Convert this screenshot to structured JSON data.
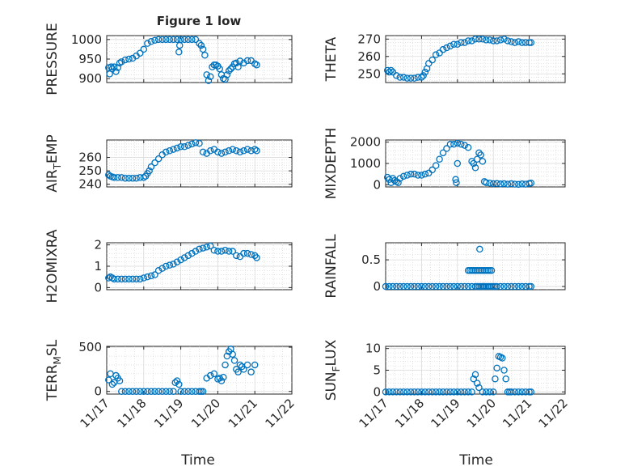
{
  "figure_title": "Figure 1 low",
  "x_axis_label": "Time",
  "x_tick_labels": [
    "11/17",
    "11/18",
    "11/19",
    "11/20",
    "11/21",
    "11/22"
  ],
  "colors": {
    "marker": "#0072bd",
    "axes": "#262626",
    "grid": "#d9d9d9"
  },
  "chart_data": [
    {
      "type": "scatter",
      "ylabel_parts": [
        "PRESSURE"
      ],
      "ylim": [
        890,
        1010
      ],
      "yticks": [
        900,
        950,
        1000
      ],
      "x": [
        0.05,
        0.08,
        0.12,
        0.15,
        0.2,
        0.25,
        0.3,
        0.35,
        0.4,
        0.5,
        0.6,
        0.7,
        0.8,
        0.9,
        1.0,
        1.1,
        1.2,
        1.3,
        1.4,
        1.5,
        1.6,
        1.7,
        1.8,
        1.9,
        2.0,
        2.1,
        2.2,
        2.3,
        2.4,
        1.95,
        1.97,
        2.5,
        2.55,
        2.6,
        2.65,
        2.7,
        2.75,
        2.8,
        2.85,
        2.9,
        2.95,
        3.0,
        3.05,
        3.1,
        3.15,
        3.2,
        3.25,
        3.3,
        3.35,
        3.4,
        3.45,
        3.5,
        3.55,
        3.6,
        3.7,
        3.8,
        3.9,
        4.0,
        4.05
      ],
      "y": [
        928,
        912,
        930,
        925,
        930,
        918,
        928,
        940,
        943,
        948,
        950,
        952,
        958,
        965,
        975,
        990,
        995,
        998,
        1000,
        1000,
        1000,
        1000,
        1000,
        1000,
        1000,
        1000,
        1000,
        1000,
        1000,
        968,
        985,
        990,
        985,
        975,
        960,
        910,
        895,
        905,
        930,
        935,
        935,
        932,
        925,
        910,
        900,
        898,
        910,
        920,
        925,
        930,
        938,
        940,
        930,
        945,
        940,
        946,
        946,
        938,
        935
      ]
    },
    {
      "type": "scatter",
      "ylabel_parts": [
        "THETA"
      ],
      "ylim": [
        245,
        272
      ],
      "yticks": [
        250,
        260,
        270
      ],
      "x": [
        0.05,
        0.1,
        0.15,
        0.2,
        0.3,
        0.4,
        0.5,
        0.6,
        0.7,
        0.8,
        0.9,
        1.0,
        1.05,
        1.1,
        1.15,
        1.2,
        1.3,
        1.4,
        1.5,
        1.6,
        1.7,
        1.8,
        1.9,
        2.0,
        2.1,
        2.2,
        2.3,
        2.4,
        2.5,
        2.6,
        2.7,
        2.8,
        2.9,
        3.0,
        3.1,
        3.2,
        3.3,
        3.4,
        3.5,
        3.6,
        3.7,
        3.8,
        3.9,
        4.0,
        4.05
      ],
      "y": [
        252,
        251,
        252,
        251,
        249,
        248,
        248,
        247.5,
        247.5,
        247.5,
        248,
        248,
        249,
        251,
        253,
        256,
        258,
        261,
        262,
        264,
        265,
        266,
        267,
        267,
        268,
        268,
        269,
        269,
        270,
        270,
        270,
        269.5,
        269.5,
        269,
        269,
        269.5,
        270,
        269,
        268.5,
        268,
        268.5,
        268,
        268,
        268,
        268
      ]
    },
    {
      "type": "scatter",
      "ylabel_parts": [
        "AIR",
        "T",
        "EMP"
      ],
      "ylim": [
        238,
        273
      ],
      "yticks": [
        240,
        250,
        260
      ],
      "x": [
        0.05,
        0.1,
        0.15,
        0.2,
        0.3,
        0.4,
        0.5,
        0.6,
        0.7,
        0.8,
        0.9,
        1.0,
        1.05,
        1.1,
        1.15,
        1.2,
        1.3,
        1.4,
        1.5,
        1.6,
        1.7,
        1.8,
        1.9,
        2.0,
        2.1,
        2.2,
        2.3,
        2.4,
        2.5,
        2.6,
        2.7,
        2.8,
        2.9,
        3.0,
        3.1,
        3.2,
        3.3,
        3.4,
        3.5,
        3.6,
        3.7,
        3.8,
        3.9,
        4.0,
        4.05
      ],
      "y": [
        247,
        246,
        245.5,
        245,
        245,
        245,
        244.5,
        244.5,
        244.5,
        244.5,
        245,
        245,
        246,
        248,
        250,
        253,
        256,
        259,
        262,
        264,
        265,
        266,
        267,
        268,
        268,
        269,
        270,
        271,
        270.5,
        264,
        263,
        265,
        266,
        264,
        263,
        264,
        265,
        266,
        265,
        264,
        265,
        266,
        265,
        266,
        265
      ]
    },
    {
      "type": "scatter",
      "ylabel_parts": [
        "MIXDEPTH"
      ],
      "ylim": [
        -100,
        2100
      ],
      "yticks": [
        0,
        1000,
        2000
      ],
      "x": [
        0.05,
        0.1,
        0.15,
        0.2,
        0.25,
        0.3,
        0.35,
        0.4,
        0.5,
        0.6,
        0.7,
        0.8,
        0.9,
        1.0,
        1.1,
        1.2,
        1.3,
        1.4,
        1.5,
        1.6,
        1.7,
        1.8,
        1.9,
        2.0,
        2.1,
        2.2,
        2.3,
        1.95,
        1.97,
        2.0,
        2.4,
        2.45,
        2.5,
        2.55,
        2.6,
        2.65,
        2.7,
        2.75,
        2.8,
        2.9,
        3.0,
        3.1,
        3.2,
        3.3,
        3.4,
        3.5,
        3.6,
        3.7,
        3.8,
        3.9,
        4.0,
        4.05
      ],
      "y": [
        350,
        250,
        100,
        300,
        200,
        150,
        100,
        300,
        400,
        450,
        500,
        500,
        450,
        450,
        500,
        550,
        700,
        900,
        1200,
        1500,
        1700,
        1900,
        1900,
        1950,
        1900,
        1850,
        1750,
        250,
        100,
        1000,
        1100,
        1000,
        800,
        1200,
        1500,
        1400,
        1100,
        150,
        100,
        80,
        50,
        60,
        40,
        50,
        30,
        50,
        30,
        20,
        40,
        30,
        60,
        80
      ]
    },
    {
      "type": "scatter",
      "ylabel_parts": [
        "H2OMIXRA"
      ],
      "ylim": [
        -0.1,
        2.1
      ],
      "yticks": [
        0,
        1,
        2
      ],
      "x": [
        0.05,
        0.1,
        0.15,
        0.2,
        0.3,
        0.4,
        0.5,
        0.6,
        0.7,
        0.8,
        0.9,
        1.0,
        1.1,
        1.2,
        1.3,
        1.4,
        1.5,
        1.6,
        1.7,
        1.8,
        1.9,
        2.0,
        2.1,
        2.2,
        2.3,
        2.4,
        2.5,
        2.6,
        2.7,
        2.8,
        2.9,
        3.0,
        3.1,
        3.2,
        3.3,
        3.4,
        3.5,
        3.6,
        3.7,
        3.8,
        3.9,
        4.0,
        4.05
      ],
      "y": [
        0.45,
        0.5,
        0.45,
        0.4,
        0.4,
        0.4,
        0.4,
        0.4,
        0.4,
        0.4,
        0.4,
        0.45,
        0.5,
        0.55,
        0.6,
        0.8,
        0.9,
        1.0,
        1.05,
        1.1,
        1.2,
        1.3,
        1.4,
        1.5,
        1.6,
        1.7,
        1.8,
        1.85,
        1.9,
        1.95,
        1.75,
        1.7,
        1.7,
        1.75,
        1.7,
        1.7,
        1.5,
        1.45,
        1.6,
        1.6,
        1.55,
        1.5,
        1.4
      ]
    },
    {
      "type": "scatter",
      "ylabel_parts": [
        "RAINFALL"
      ],
      "ylim": [
        -0.06,
        0.82
      ],
      "yticks": [
        0,
        0.5
      ],
      "x": [
        0.0,
        0.1,
        0.2,
        0.3,
        0.4,
        0.5,
        0.6,
        0.7,
        0.8,
        0.9,
        1.0,
        1.1,
        1.2,
        1.3,
        1.4,
        1.5,
        1.6,
        1.7,
        1.8,
        1.9,
        2.0,
        2.1,
        2.2,
        2.3,
        2.4,
        2.5,
        2.55,
        2.6,
        2.65,
        2.7,
        2.75,
        2.8,
        2.85,
        2.9,
        2.95,
        3.0,
        3.05,
        2.3,
        2.35,
        2.4,
        2.45,
        2.5,
        2.55,
        2.6,
        2.65,
        2.7,
        2.75,
        2.8,
        2.85,
        2.9,
        2.95,
        2.62,
        2.72,
        3.1,
        3.2,
        3.3,
        3.4,
        3.5,
        3.6,
        3.7,
        3.8,
        3.9,
        4.0,
        4.05
      ],
      "y": [
        0,
        0,
        0,
        0,
        0,
        0,
        0,
        0,
        0,
        0,
        0,
        0,
        0,
        0,
        0,
        0,
        0,
        0,
        0,
        0,
        0,
        0,
        0,
        0,
        0,
        0,
        0,
        0,
        0,
        0,
        0,
        0,
        0,
        0,
        0,
        0,
        0,
        0.3,
        0.3,
        0.3,
        0.3,
        0.3,
        0.3,
        0.3,
        0.3,
        0.3,
        0.3,
        0.3,
        0.3,
        0.3,
        0.3,
        0.7,
        0,
        0,
        0,
        0,
        0,
        0,
        0,
        0,
        0,
        0,
        0,
        0
      ]
    },
    {
      "type": "scatter",
      "ylabel_parts": [
        "TERR",
        "M",
        "SL"
      ],
      "ylim": [
        -30,
        510
      ],
      "yticks": [
        0,
        500
      ],
      "x": [
        0.05,
        0.1,
        0.15,
        0.2,
        0.25,
        0.3,
        0.35,
        0.4,
        0.5,
        0.6,
        0.7,
        0.8,
        0.9,
        1.0,
        1.1,
        1.2,
        1.3,
        1.4,
        1.5,
        1.6,
        1.7,
        1.8,
        1.85,
        1.9,
        1.95,
        2.0,
        2.1,
        2.2,
        2.3,
        2.4,
        2.5,
        2.55,
        2.6,
        2.7,
        2.8,
        2.9,
        3.0,
        3.05,
        3.1,
        3.15,
        3.2,
        3.25,
        3.3,
        3.35,
        3.4,
        3.45,
        3.5,
        3.55,
        3.6,
        3.65,
        3.7,
        3.8,
        3.9,
        4.0
      ],
      "y": [
        130,
        200,
        80,
        100,
        180,
        150,
        120,
        0,
        0,
        0,
        0,
        0,
        0,
        0,
        0,
        0,
        0,
        0,
        0,
        0,
        0,
        0,
        100,
        120,
        80,
        0,
        0,
        0,
        0,
        0,
        0,
        0,
        0,
        150,
        180,
        200,
        140,
        150,
        120,
        160,
        300,
        400,
        450,
        480,
        420,
        350,
        250,
        220,
        300,
        280,
        250,
        300,
        220,
        300
      ]
    },
    {
      "type": "scatter",
      "ylabel_parts": [
        "SUN",
        "F",
        "LUX"
      ],
      "ylim": [
        -0.5,
        10.5
      ],
      "yticks": [
        0,
        5,
        10
      ],
      "x": [
        0.0,
        0.1,
        0.2,
        0.3,
        0.4,
        0.5,
        0.6,
        0.7,
        0.8,
        0.9,
        1.0,
        1.1,
        1.2,
        1.3,
        1.4,
        1.5,
        1.6,
        1.7,
        1.8,
        1.9,
        2.0,
        2.1,
        2.2,
        2.3,
        2.4,
        2.45,
        2.5,
        2.55,
        2.6,
        2.7,
        2.8,
        2.9,
        3.0,
        3.05,
        3.1,
        3.15,
        3.2,
        3.25,
        3.3,
        3.35,
        3.4,
        3.45,
        3.5,
        3.6,
        3.7,
        3.8,
        3.9,
        4.0,
        4.05
      ],
      "y": [
        0,
        0,
        0,
        0,
        0,
        0,
        0,
        0,
        0,
        0,
        0,
        0,
        0,
        0,
        0,
        0,
        0,
        0,
        0,
        0,
        0,
        0,
        0,
        0,
        0,
        3,
        4,
        2,
        1,
        0,
        0,
        0,
        0,
        3,
        5.5,
        8.2,
        8,
        7.8,
        5,
        3,
        0,
        0,
        0,
        0,
        0,
        0,
        0,
        0,
        0
      ]
    }
  ]
}
